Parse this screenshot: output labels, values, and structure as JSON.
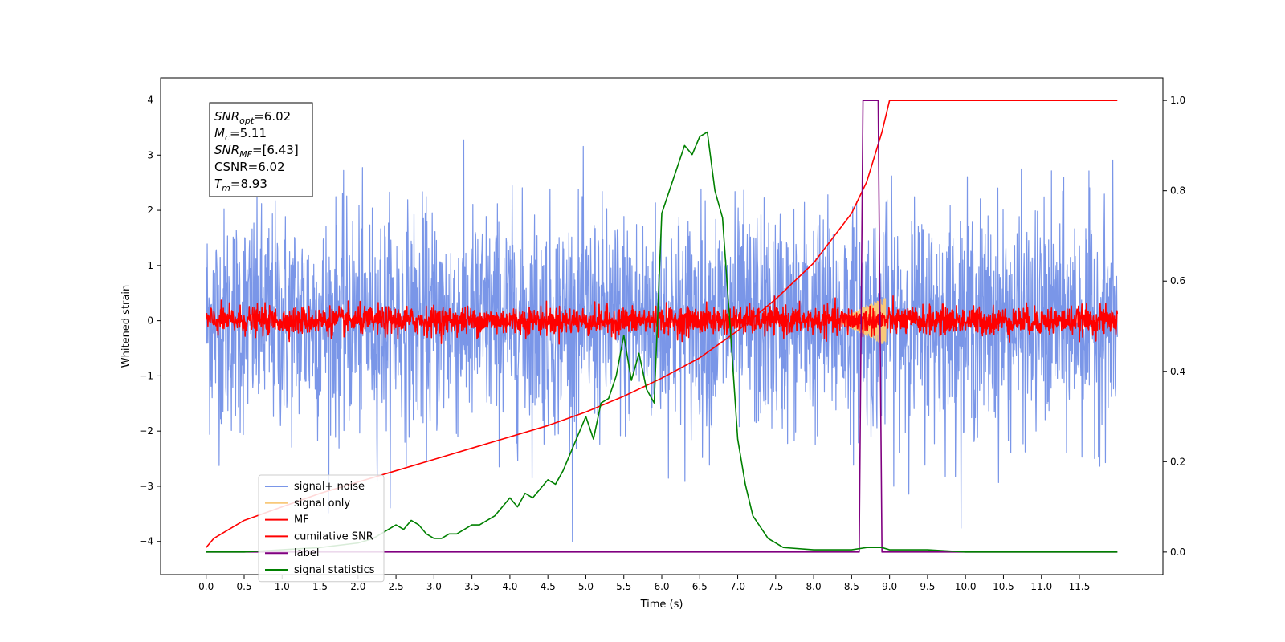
{
  "chart_data": {
    "type": "line",
    "xlabel": "Time (s)",
    "ylabel": "Whitened strain",
    "xlim": [
      -0.6,
      12.6
    ],
    "ylim": [
      -4.6,
      4.4
    ],
    "y2lim": [
      -0.05,
      1.05
    ],
    "x_ticks": [
      "0.0",
      "0.5",
      "1.0",
      "1.5",
      "2.0",
      "2.5",
      "3.0",
      "3.5",
      "4.0",
      "4.5",
      "5.0",
      "5.5",
      "6.0",
      "6.5",
      "7.0",
      "7.5",
      "8.0",
      "8.5",
      "9.0",
      "9.5",
      "10.0",
      "10.5",
      "11.0",
      "11.5"
    ],
    "y_ticks": [
      "4",
      "3",
      "2",
      "1",
      "0",
      "−1",
      "−2",
      "−3",
      "−4"
    ],
    "y2_ticks": [
      "1.0",
      "0.8",
      "0.6",
      "0.4",
      "0.2",
      "0.0"
    ],
    "info_box": [
      {
        "base": "SNR",
        "sub": "opt",
        "rest": "=6.02"
      },
      {
        "base": "M",
        "sub": "c",
        "rest": "=5.11"
      },
      {
        "base": "SNR",
        "sub": "MF",
        "rest": "=[6.43]"
      },
      {
        "base": "CSNR",
        "sub": "",
        "rest": "=6.02"
      },
      {
        "base": "T",
        "sub": "m",
        "rest": "=8.93"
      }
    ],
    "legend_position": "lower-left",
    "series": [
      {
        "name": "signal+ noise",
        "color": "#7a96e8",
        "axis": "left",
        "kind": "noise",
        "x_range": [
          0,
          12.0
        ],
        "amplitude": 2.0,
        "peak": 4.0
      },
      {
        "name": "signal only",
        "color": "#f8c97a",
        "axis": "left",
        "kind": "chirp",
        "x_range": [
          8.3,
          8.95
        ],
        "peak": 0.45
      },
      {
        "name": "MF",
        "color": "#ff0000",
        "axis": "left",
        "kind": "noise",
        "x_range": [
          0,
          12.0
        ],
        "amplitude": 0.25,
        "peak": 0.5
      },
      {
        "name": "cumilative SNR",
        "color": "#ff0000",
        "axis": "right",
        "x": [
          0.0,
          0.1,
          0.5,
          1.0,
          1.5,
          2.0,
          2.5,
          3.0,
          3.5,
          4.0,
          4.5,
          5.0,
          5.5,
          6.0,
          6.5,
          7.0,
          7.5,
          8.0,
          8.5,
          8.7,
          8.9,
          9.0,
          12.0
        ],
        "y": [
          0.01,
          0.03,
          0.07,
          0.1,
          0.13,
          0.155,
          0.18,
          0.205,
          0.23,
          0.255,
          0.28,
          0.31,
          0.345,
          0.385,
          0.43,
          0.49,
          0.56,
          0.64,
          0.75,
          0.82,
          0.93,
          1.0,
          1.0
        ]
      },
      {
        "name": "label",
        "color": "#800080",
        "axis": "right",
        "x": [
          0.0,
          8.6,
          8.65,
          8.85,
          8.9,
          12.0
        ],
        "y": [
          0.0,
          0.0,
          1.0,
          1.0,
          0.0,
          0.0
        ]
      },
      {
        "name": "signal statistics",
        "color": "#008000",
        "axis": "right",
        "x": [
          0.0,
          0.5,
          1.0,
          1.5,
          2.0,
          2.2,
          2.3,
          2.4,
          2.5,
          2.6,
          2.7,
          2.8,
          2.9,
          3.0,
          3.1,
          3.2,
          3.3,
          3.4,
          3.5,
          3.6,
          3.7,
          3.8,
          3.9,
          4.0,
          4.1,
          4.2,
          4.3,
          4.4,
          4.5,
          4.6,
          4.7,
          4.8,
          4.9,
          5.0,
          5.1,
          5.2,
          5.3,
          5.4,
          5.5,
          5.6,
          5.7,
          5.8,
          5.9,
          6.0,
          6.1,
          6.2,
          6.3,
          6.4,
          6.5,
          6.6,
          6.7,
          6.8,
          6.9,
          7.0,
          7.1,
          7.2,
          7.4,
          7.6,
          8.0,
          8.5,
          8.7,
          8.9,
          9.0,
          9.2,
          9.5,
          10.0,
          11.0,
          12.0
        ],
        "y": [
          0.0,
          0.0,
          0.005,
          0.01,
          0.02,
          0.03,
          0.04,
          0.05,
          0.06,
          0.05,
          0.07,
          0.06,
          0.04,
          0.03,
          0.03,
          0.04,
          0.04,
          0.05,
          0.06,
          0.06,
          0.07,
          0.08,
          0.1,
          0.12,
          0.1,
          0.13,
          0.12,
          0.14,
          0.16,
          0.15,
          0.18,
          0.22,
          0.26,
          0.3,
          0.25,
          0.33,
          0.34,
          0.39,
          0.48,
          0.38,
          0.44,
          0.36,
          0.33,
          0.75,
          0.8,
          0.85,
          0.9,
          0.88,
          0.92,
          0.93,
          0.8,
          0.74,
          0.5,
          0.25,
          0.15,
          0.08,
          0.03,
          0.01,
          0.005,
          0.005,
          0.01,
          0.01,
          0.005,
          0.005,
          0.005,
          0.0,
          0.0,
          0.0
        ]
      }
    ]
  }
}
